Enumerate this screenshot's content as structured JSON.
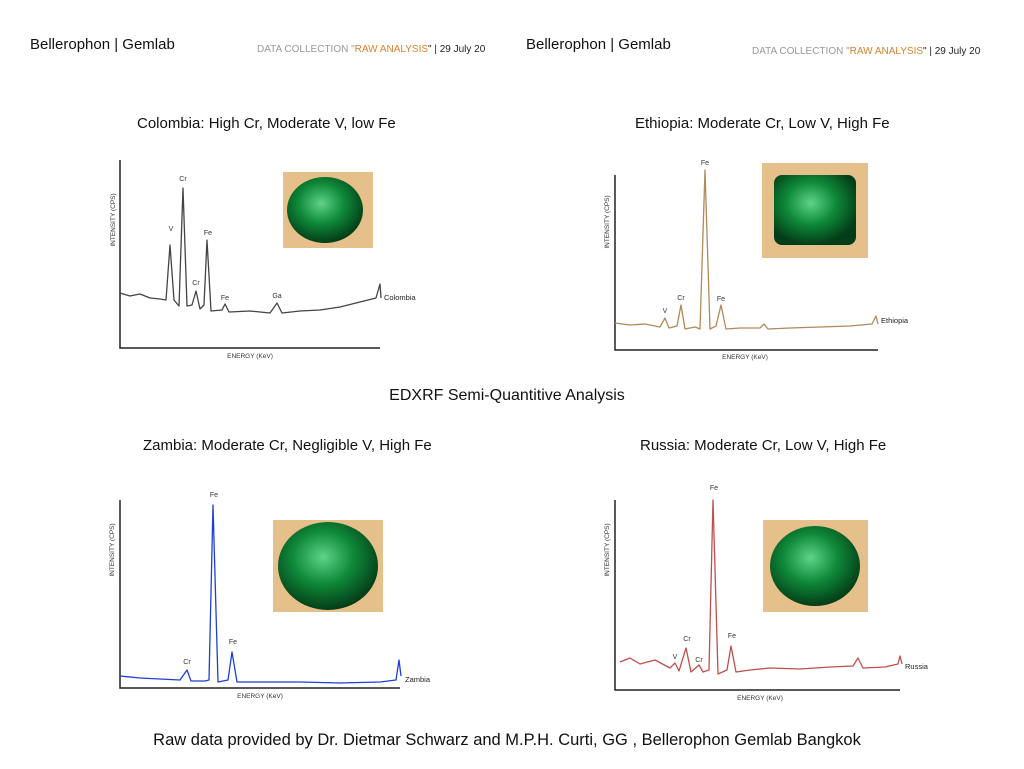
{
  "headers": [
    {
      "brand": "Bellerophon | Gemlab",
      "prefix": "DATA COLLECTION \"",
      "highlight": "RAW ANALYSIS",
      "suffix": "\" | 29 July 20"
    },
    {
      "brand": "Bellerophon | Gemlab",
      "prefix": "DATA COLLECTION \"",
      "highlight": "RAW ANALYSIS",
      "suffix": "\" | 29 July 20"
    }
  ],
  "center_title": "EDXRF  Semi-Quantitive Analysis",
  "footer": "Raw data provided by Dr. Dietmar Schwarz and M.P.H. Curti, GG , Bellerophon Gemlab Bangkok",
  "panels": [
    {
      "title": "Colombia: High Cr, Moderate V, low Fe",
      "series": "Colombia",
      "y_axis": "INTENSITY (CPS)",
      "x_axis": "ENERGY (KeV)",
      "peaks": [
        "V",
        "Cr",
        "Cr",
        "Fe",
        "Fe",
        "Ga"
      ]
    },
    {
      "title": "Ethiopia: Moderate Cr, Low V, High Fe",
      "series": "Ethiopia",
      "y_axis": "INTENSITY (CPS)",
      "x_axis": "ENERGY (KeV)",
      "peaks": [
        "V",
        "Cr",
        "Fe",
        "Fe"
      ]
    },
    {
      "title": "Zambia: Moderate Cr, Negligible V, High Fe",
      "series": "Zambia",
      "y_axis": "INTENSITY (CPS)",
      "x_axis": "ENERGY (KeV)",
      "peaks": [
        "Cr",
        "Fe",
        "Fe"
      ]
    },
    {
      "title": "Russia: Moderate Cr, Low V, High Fe",
      "series": "Russia",
      "y_axis": "INTENSITY (CPS)",
      "x_axis": "ENERGY (KeV)",
      "peaks": [
        "V",
        "Cr",
        "Cr",
        "Fe",
        "Fe"
      ]
    }
  ]
}
